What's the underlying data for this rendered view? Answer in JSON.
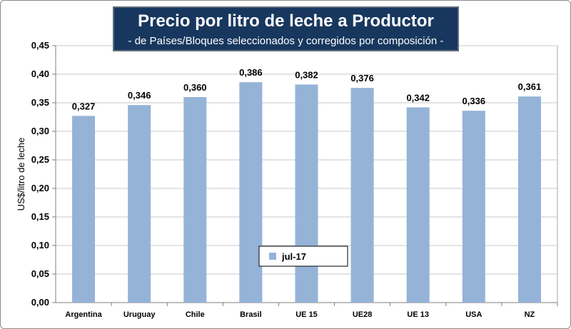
{
  "chart_data": {
    "type": "bar",
    "title": "Precio por litro de leche a Productor",
    "subtitle": "-  de Países/Bloques seleccionados y corregidos por composición  -",
    "xlabel": "",
    "ylabel": "US$/litro de leche",
    "ylim": [
      0,
      0.45
    ],
    "yticks": [
      0,
      0.05,
      0.1,
      0.15,
      0.2,
      0.25,
      0.3,
      0.35,
      0.4,
      0.45
    ],
    "ytick_labels": [
      "0,00",
      "0,05",
      "0,10",
      "0,15",
      "0,20",
      "0,25",
      "0,30",
      "0,35",
      "0,40",
      "0,45"
    ],
    "categories": [
      "Argentina",
      "Uruguay",
      "Chile",
      "Brasil",
      "UE 15",
      "UE28",
      "UE 13",
      "USA",
      "NZ"
    ],
    "series": [
      {
        "name": "jul-17",
        "color": "#95b3d7",
        "values": [
          0.327,
          0.346,
          0.36,
          0.386,
          0.382,
          0.376,
          0.342,
          0.336,
          0.361
        ],
        "labels": [
          "0,327",
          "0,346",
          "0,360",
          "0,386",
          "0,382",
          "0,376",
          "0,342",
          "0,336",
          "0,361"
        ]
      }
    ],
    "grid": true,
    "legend": "bottom-center"
  }
}
